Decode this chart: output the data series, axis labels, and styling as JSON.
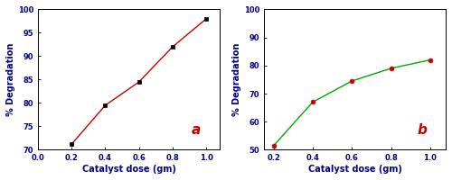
{
  "plot_a": {
    "x": [
      0.2,
      0.4,
      0.6,
      0.8,
      1.0
    ],
    "y": [
      71.2,
      79.5,
      84.5,
      92.0,
      98.0
    ],
    "line_color": "#cc0000",
    "marker": "s",
    "marker_color": "black",
    "marker_size": 3.5,
    "linewidth": 1.0,
    "xlabel": "Catalyst dose (gm)",
    "ylabel": "% Degradation",
    "xlim": [
      0.0,
      1.08
    ],
    "ylim": [
      70,
      100
    ],
    "yticks": [
      70,
      75,
      80,
      85,
      90,
      95,
      100
    ],
    "xticks": [
      0.0,
      0.2,
      0.4,
      0.6,
      0.8,
      1.0
    ],
    "label": "a",
    "label_color": "#cc0000",
    "label_fontsize": 11,
    "axis_label_color": "#00008B",
    "tick_label_color": "#00008B",
    "tick_fontsize": 6,
    "axis_label_fontsize": 7
  },
  "plot_b": {
    "x": [
      0.2,
      0.4,
      0.6,
      0.8,
      1.0
    ],
    "y": [
      51.5,
      67.0,
      74.5,
      79.0,
      82.0
    ],
    "line_color": "#00aa00",
    "marker": "o",
    "marker_color": "#cc0000",
    "marker_size": 3.5,
    "linewidth": 1.0,
    "xlabel": "Catalyst dose (gm)",
    "ylabel": "% Degradation",
    "xlim": [
      0.15,
      1.08
    ],
    "ylim": [
      50,
      100
    ],
    "yticks": [
      50,
      60,
      70,
      80,
      90,
      100
    ],
    "xticks": [
      0.2,
      0.4,
      0.6,
      0.8,
      1.0
    ],
    "label": "b",
    "label_color": "#cc0000",
    "label_fontsize": 11,
    "axis_label_color": "#00008B",
    "tick_label_color": "#00008B",
    "tick_fontsize": 6,
    "axis_label_fontsize": 7
  }
}
